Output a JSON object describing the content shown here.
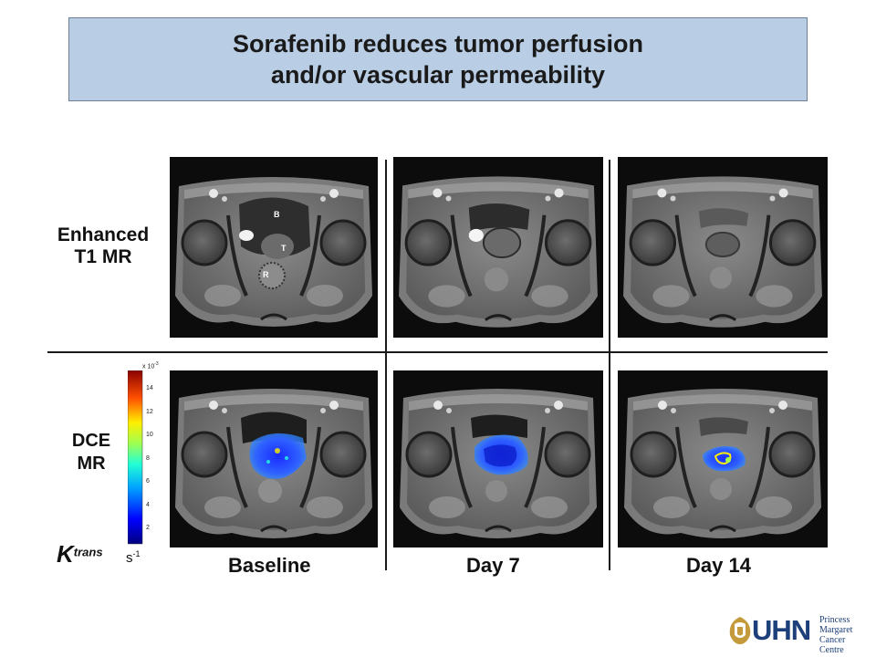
{
  "title": {
    "line1": "Sorafenib reduces  tumor perfusion",
    "line2": "and/or vascular permeability"
  },
  "rows": {
    "enhanced": {
      "line1": "Enhanced",
      "line2": "T1 MR"
    },
    "dce": {
      "line1": "DCE",
      "line2": "MR"
    }
  },
  "columns": [
    "Baseline",
    "Day 7",
    "Day 14"
  ],
  "anatomy_labels": {
    "bladder": "B",
    "tumor": "T",
    "rectum": "R"
  },
  "colorbar": {
    "scale": "x 10",
    "scale_exp": "-3",
    "ticks": [
      "14",
      "12",
      "10",
      "8",
      "6",
      "4",
      "2"
    ],
    "ktrans_k": "K",
    "ktrans_sup": "trans",
    "unit": "s",
    "unit_exp": "-1"
  },
  "logo": {
    "brand": "UHN",
    "line1": "Princess",
    "line2": "Margaret",
    "line3": "Cancer Centre"
  },
  "colors": {
    "title_bg": "#b9cde5",
    "perfusion_low": "#1f3cff",
    "perfusion_high": "#ffee00",
    "logo_gold": "#c49a3a",
    "logo_blue": "#1d3f7a"
  }
}
